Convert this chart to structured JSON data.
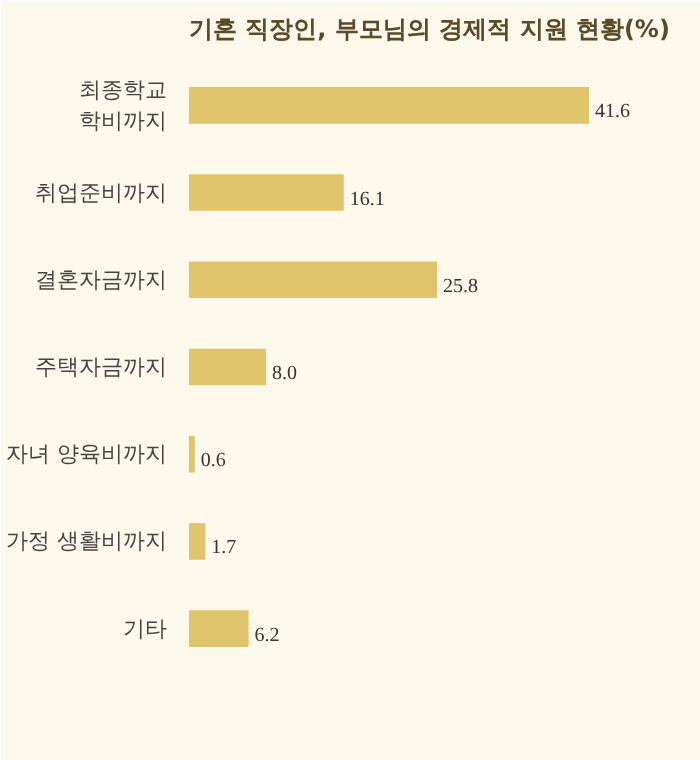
{
  "chart_data": {
    "type": "bar",
    "orientation": "horizontal",
    "title": "기혼 직장인, 부모님의 경제적 지원 현황(%)",
    "categories": [
      "최종학교\n학비까지",
      "취업준비까지",
      "결혼자금까지",
      "주택자금까지",
      "자녀 양육비까지",
      "가정 생활비까지",
      "기타"
    ],
    "values": [
      41.6,
      16.1,
      25.8,
      8.0,
      0.6,
      1.7,
      6.2
    ],
    "value_labels": [
      "41.6",
      "16.1",
      "25.8",
      "8.0",
      "0.6",
      "1.7",
      "6.2"
    ],
    "color": "#e0c46c",
    "grid": false
  }
}
